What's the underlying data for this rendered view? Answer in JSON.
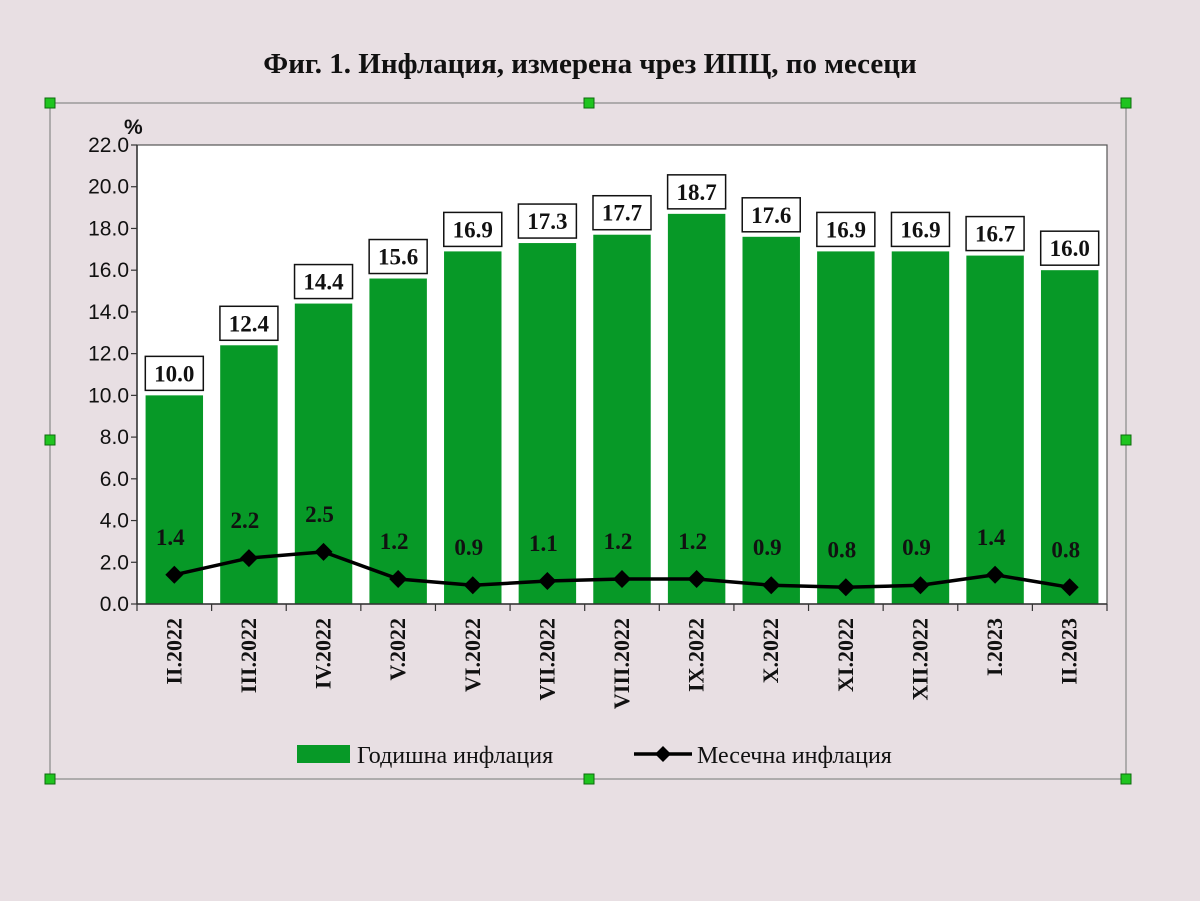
{
  "chart_data": {
    "type": "bar",
    "title": "Фиг. 1. Инфлация, измерена чрез ИПЦ, по месеци",
    "ylabel": "%",
    "xlabel": "",
    "ylim": [
      0,
      22
    ],
    "yticks": [
      "0.0",
      "2.0",
      "4.0",
      "6.0",
      "8.0",
      "10.0",
      "12.0",
      "14.0",
      "16.0",
      "18.0",
      "20.0",
      "22.0"
    ],
    "categories": [
      "II.2022",
      "III.2022",
      "IV.2022",
      "V.2022",
      "VI.2022",
      "VII.2022",
      "VIII.2022",
      "IX.2022",
      "X.2022",
      "XI.2022",
      "XII.2022",
      "I.2023",
      "II.2023"
    ],
    "series": [
      {
        "name": "Годишна инфлация",
        "type": "bar",
        "color": "#079927",
        "values": [
          10.0,
          12.4,
          14.4,
          15.6,
          16.9,
          17.3,
          17.7,
          18.7,
          17.6,
          16.9,
          16.9,
          16.7,
          16.0
        ]
      },
      {
        "name": "Месечна инфлация",
        "type": "line",
        "color": "#000000",
        "marker": "diamond",
        "values": [
          1.4,
          2.2,
          2.5,
          1.2,
          0.9,
          1.1,
          1.2,
          1.2,
          0.9,
          0.8,
          0.9,
          1.4,
          0.8
        ]
      }
    ],
    "grid": false,
    "legend_position": "bottom",
    "plot_background": "#ffffff"
  }
}
